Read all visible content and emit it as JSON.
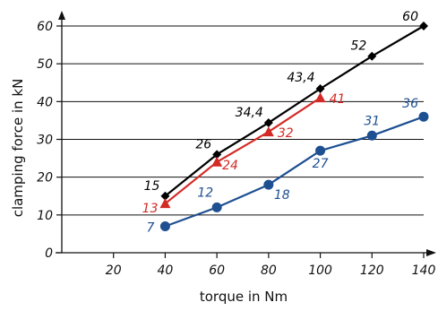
{
  "chart_data": {
    "type": "line",
    "xlabel": "torque in Nm",
    "ylabel": "clamping force in kN",
    "xlim": [
      0,
      140
    ],
    "ylim": [
      0,
      60
    ],
    "x_ticks": [
      "20",
      "40",
      "60",
      "80",
      "100",
      "120",
      "140"
    ],
    "y_ticks": [
      "0",
      "10",
      "20",
      "30",
      "40",
      "50",
      "60"
    ],
    "grid": "horizontal",
    "legend": "none",
    "series": [
      {
        "color": "#000000",
        "marker": "diamond",
        "points": [
          {
            "x": 40,
            "y": 15,
            "label": "15"
          },
          {
            "x": 60,
            "y": 26,
            "label": "26"
          },
          {
            "x": 80,
            "y": 34.4,
            "label": "34,4"
          },
          {
            "x": 100,
            "y": 43.4,
            "label": "43,4"
          },
          {
            "x": 120,
            "y": 52,
            "label": "52"
          },
          {
            "x": 140,
            "y": 60,
            "label": "60"
          }
        ]
      },
      {
        "color": "#d42a25",
        "marker": "triangle",
        "points": [
          {
            "x": 40,
            "y": 13,
            "label": "13"
          },
          {
            "x": 60,
            "y": 24,
            "label": "24"
          },
          {
            "x": 80,
            "y": 32,
            "label": "32"
          },
          {
            "x": 100,
            "y": 41,
            "label": "41"
          }
        ]
      },
      {
        "color": "#1d4f91",
        "marker": "circle",
        "points": [
          {
            "x": 40,
            "y": 7,
            "label": "7"
          },
          {
            "x": 60,
            "y": 12,
            "label": "12"
          },
          {
            "x": 80,
            "y": 18,
            "label": "18"
          },
          {
            "x": 100,
            "y": 27,
            "label": "27"
          },
          {
            "x": 120,
            "y": 31,
            "label": "31"
          },
          {
            "x": 140,
            "y": 36,
            "label": "36"
          }
        ]
      }
    ]
  }
}
